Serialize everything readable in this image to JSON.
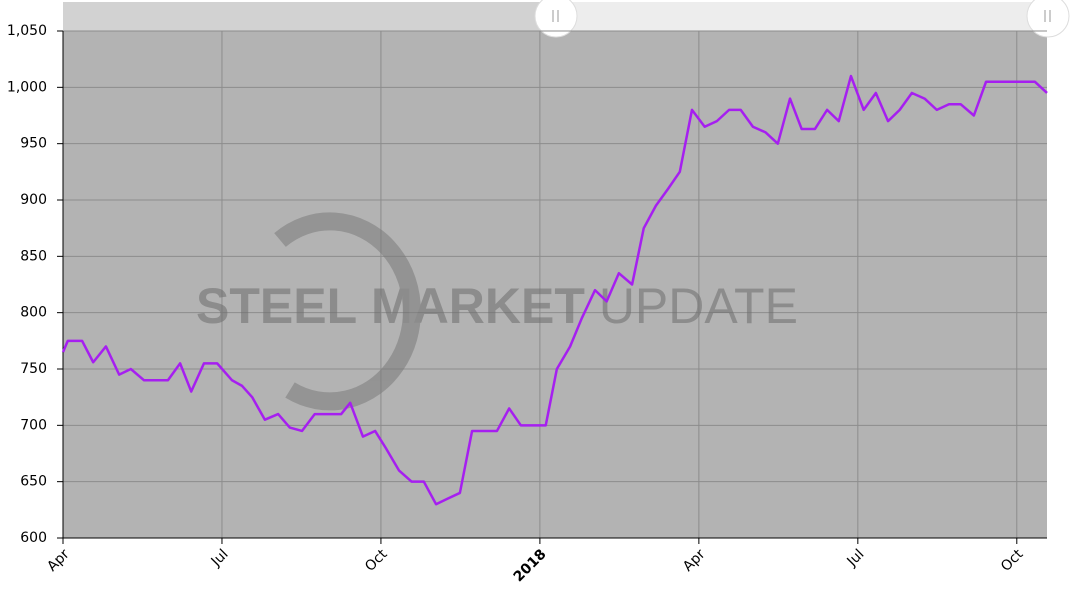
{
  "chart_data": {
    "type": "line",
    "watermark": [
      "STEEL",
      "MARKET",
      "UPDATE"
    ],
    "color": "#a61ff0",
    "grid": true,
    "ylim": [
      600,
      1050
    ],
    "yticks": [
      600,
      650,
      700,
      750,
      800,
      850,
      900,
      950,
      {
        "value": 1000,
        "label": "1,000"
      },
      {
        "value": 1050,
        "label": "1,050"
      }
    ],
    "xlim": [
      0,
      18.57
    ],
    "xticks": [
      {
        "value": 0,
        "label": "Apr"
      },
      {
        "value": 3,
        "label": "Jul"
      },
      {
        "value": 6,
        "label": "Oct"
      },
      {
        "value": 9,
        "label": "2018",
        "bold": true
      },
      {
        "value": 12,
        "label": "Apr"
      },
      {
        "value": 15,
        "label": "Jul"
      },
      {
        "value": 18,
        "label": "Oct"
      }
    ],
    "x": [
      0,
      0.09,
      0.36,
      0.57,
      0.81,
      1.06,
      1.28,
      1.53,
      1.74,
      1.98,
      2.21,
      2.42,
      2.66,
      2.91,
      3.19,
      3.38,
      3.57,
      3.81,
      4.06,
      4.28,
      4.51,
      4.75,
      5.0,
      5.25,
      5.42,
      5.66,
      5.89,
      6.09,
      6.34,
      6.58,
      6.81,
      7.04,
      7.26,
      7.49,
      7.72,
      7.96,
      8.19,
      8.42,
      8.64,
      8.87,
      9.11,
      9.32,
      9.57,
      9.79,
      10.04,
      10.26,
      10.49,
      10.74,
      10.96,
      11.19,
      11.42,
      11.64,
      11.87,
      12.11,
      12.34,
      12.57,
      12.79,
      13.02,
      13.26,
      13.49,
      13.72,
      13.94,
      14.19,
      14.42,
      14.64,
      14.87,
      15.11,
      15.34,
      15.57,
      15.79,
      16.02,
      16.26,
      16.49,
      16.72,
      16.94,
      17.19,
      17.42,
      17.64,
      17.87,
      18.34,
      18.57
    ],
    "values": [
      765,
      775,
      775,
      756,
      770,
      745,
      750,
      740,
      740,
      740,
      755,
      730,
      755,
      755,
      740,
      735,
      725,
      705,
      710,
      698,
      695,
      710,
      710,
      710,
      720,
      690,
      695,
      680,
      660,
      650,
      650,
      630,
      635,
      640,
      695,
      695,
      695,
      715,
      700,
      700,
      700,
      750,
      770,
      795,
      820,
      810,
      835,
      825,
      875,
      895,
      910,
      925,
      980,
      965,
      970,
      980,
      980,
      965,
      960,
      950,
      990,
      963,
      963,
      980,
      970,
      1010,
      980,
      995,
      970,
      980,
      995,
      990,
      980,
      985,
      985,
      975,
      1005,
      1005,
      1005,
      1005,
      995
    ]
  }
}
